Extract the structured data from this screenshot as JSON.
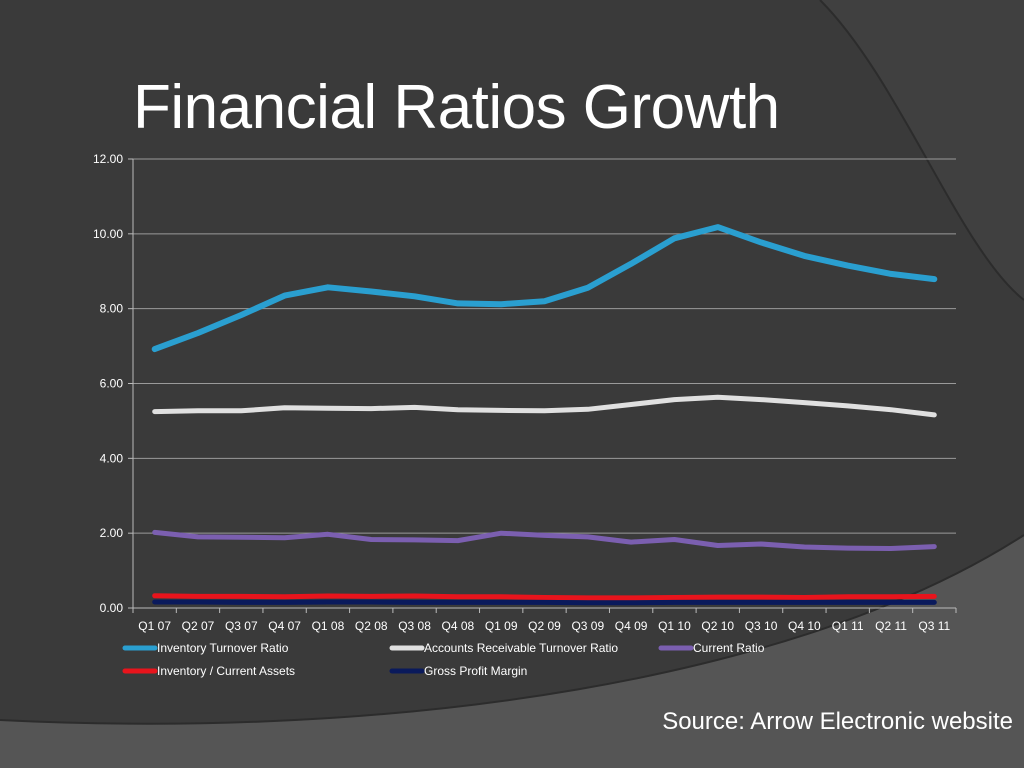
{
  "slide": {
    "title": "Financial Ratios Growth",
    "source": "Source:  Arrow Electronic website"
  },
  "colors": {
    "background": "#3a3a3a",
    "text": "#ffffff"
  },
  "chart_data": {
    "type": "line",
    "title": "",
    "xlabel": "",
    "ylabel": "",
    "ylim": [
      0,
      12
    ],
    "yticks": [
      "0.00",
      "2.00",
      "4.00",
      "6.00",
      "8.00",
      "10.00",
      "12.00"
    ],
    "grid": true,
    "legend_position": "bottom",
    "categories": [
      "Q1 07",
      "Q2 07",
      "Q3 07",
      "Q4 07",
      "Q1 08",
      "Q2 08",
      "Q3 08",
      "Q4 08",
      "Q1 09",
      "Q2 09",
      "Q3 09",
      "Q4 09",
      "Q1 10",
      "Q2 10",
      "Q3 10",
      "Q4 10",
      "Q1 11",
      "Q2 11",
      "Q3 11"
    ],
    "series": [
      {
        "name": "Inventory Turnover Ratio",
        "color": "#2a9fd0",
        "values": [
          6.92,
          7.35,
          7.83,
          8.35,
          8.57,
          8.46,
          8.33,
          8.14,
          8.12,
          8.2,
          8.56,
          9.2,
          9.88,
          10.18,
          9.77,
          9.41,
          9.15,
          8.93,
          8.79
        ]
      },
      {
        "name": "Accounts Receivable Turnover Ratio",
        "color": "#e0e0e0",
        "values": [
          5.25,
          5.27,
          5.27,
          5.35,
          5.34,
          5.33,
          5.36,
          5.3,
          5.28,
          5.27,
          5.31,
          5.44,
          5.57,
          5.63,
          5.57,
          5.49,
          5.4,
          5.3,
          5.16
        ]
      },
      {
        "name": "Current Ratio",
        "color": "#7b5fb0",
        "values": [
          2.02,
          1.9,
          1.89,
          1.88,
          1.97,
          1.83,
          1.82,
          1.8,
          2.0,
          1.94,
          1.9,
          1.76,
          1.83,
          1.67,
          1.71,
          1.63,
          1.6,
          1.59,
          1.64
        ]
      },
      {
        "name": "Inventory / Current Assets",
        "color": "#e8141c",
        "values": [
          0.33,
          0.31,
          0.31,
          0.3,
          0.32,
          0.31,
          0.32,
          0.3,
          0.3,
          0.28,
          0.27,
          0.27,
          0.28,
          0.29,
          0.29,
          0.28,
          0.3,
          0.3,
          0.31
        ]
      },
      {
        "name": "Gross Profit Margin",
        "color": "#0a1a5c",
        "values": [
          0.16,
          0.16,
          0.15,
          0.15,
          0.16,
          0.16,
          0.15,
          0.15,
          0.15,
          0.15,
          0.14,
          0.14,
          0.15,
          0.15,
          0.15,
          0.15,
          0.15,
          0.15,
          0.15
        ]
      }
    ]
  }
}
